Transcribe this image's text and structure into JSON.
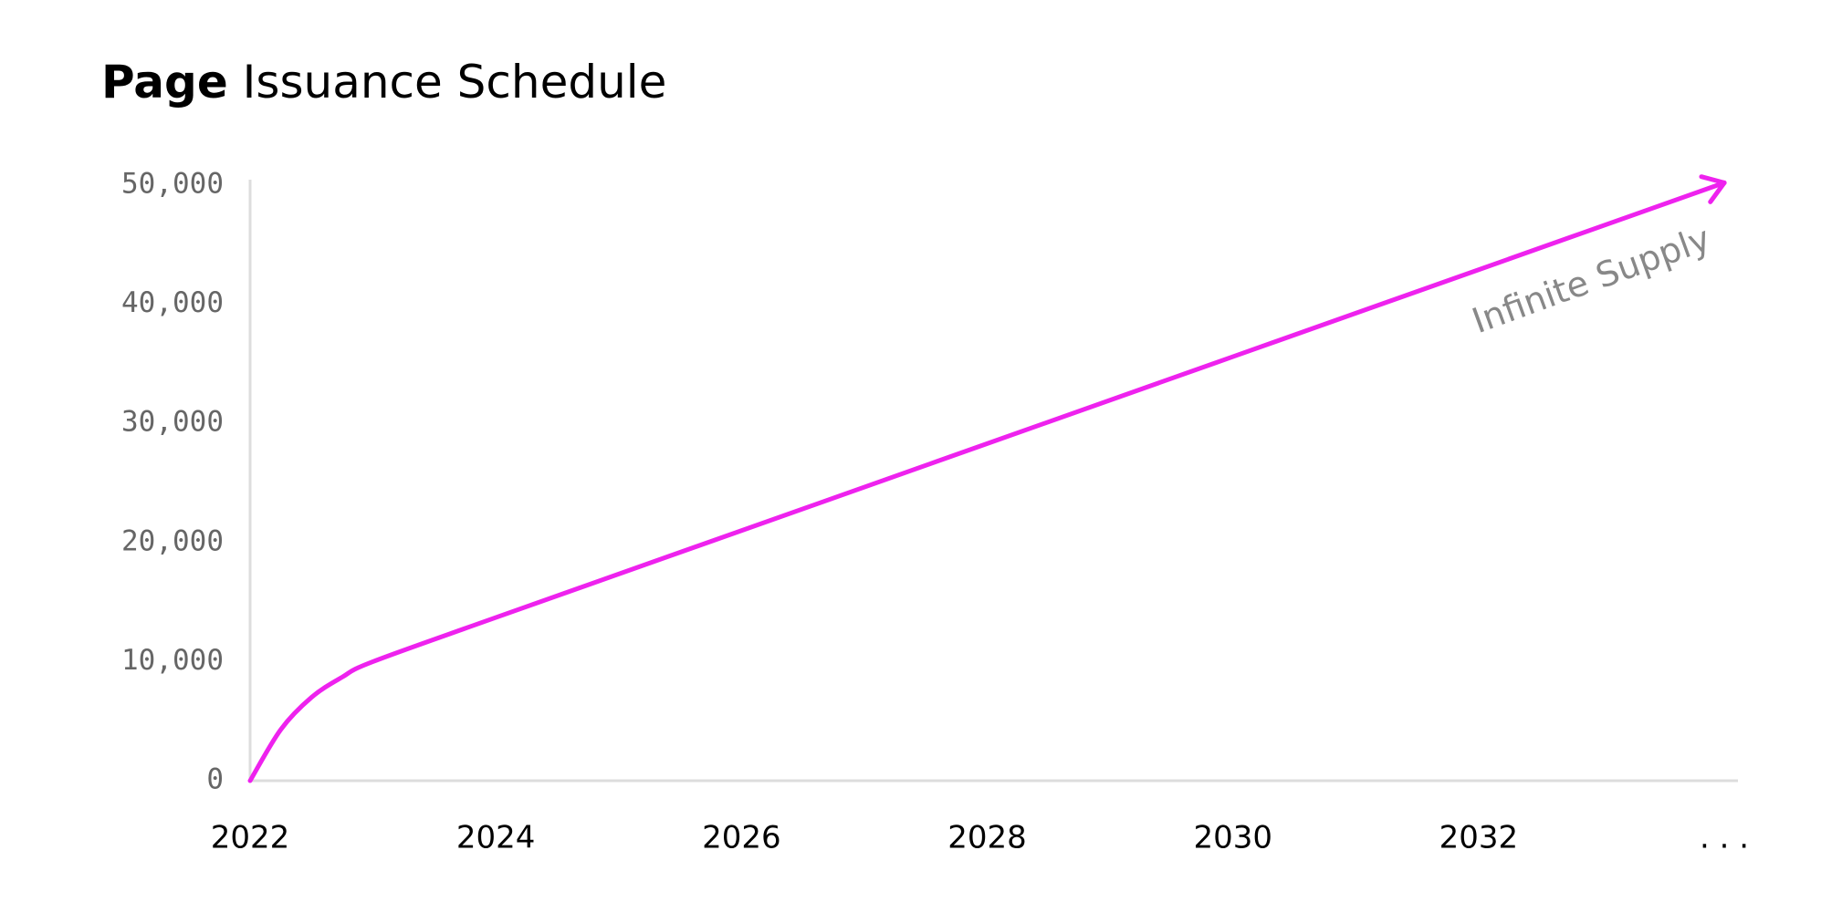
{
  "chart_data": {
    "type": "line",
    "title_emphasis": "Page",
    "title": "Issuance Schedule",
    "annotation": "Infinite Supply",
    "x": [
      2022,
      2022.25,
      2022.5,
      2022.75,
      2023,
      2024,
      2026,
      2028,
      2030,
      2032,
      2034
    ],
    "series": [
      {
        "color": "#ee22ee",
        "values": [
          0,
          4300,
          7000,
          8700,
          10000,
          13700,
          21000,
          28300,
          35600,
          42900,
          50200
        ]
      }
    ],
    "xlim": [
      2022,
      2034.2
    ],
    "xticks": [
      2022,
      2024,
      2026,
      2028,
      2030,
      2032,
      {
        "value": 2034,
        "label": ". . ."
      }
    ],
    "ylim": [
      0,
      50000
    ],
    "yticks": [
      0,
      {
        "value": 10000,
        "label": "10,000"
      },
      {
        "value": 20000,
        "label": "20,000"
      },
      {
        "value": 30000,
        "label": "30,000"
      },
      {
        "value": 40000,
        "label": "40,000"
      },
      {
        "value": 50000,
        "label": "50,000"
      }
    ],
    "grid": false
  }
}
